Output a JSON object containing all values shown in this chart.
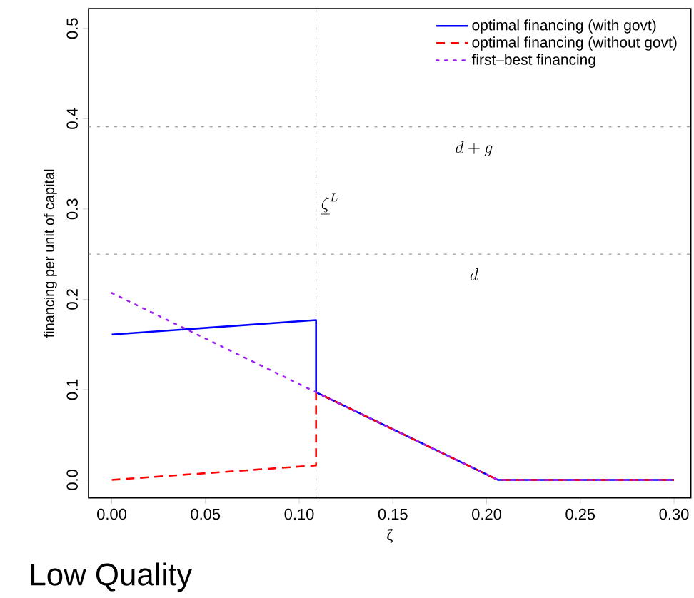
{
  "chart_data": {
    "type": "line",
    "xlabel": "ζ",
    "ylabel": "financing per unit of capital",
    "xlim": [
      -0.0124,
      0.309
    ],
    "ylim": [
      -0.02,
      0.522
    ],
    "xticks": [
      {
        "value": 0,
        "label": "0.00"
      },
      {
        "value": 0.05,
        "label": "0.05"
      },
      {
        "value": 0.1,
        "label": "0.10"
      },
      {
        "value": 0.15,
        "label": "0.15"
      },
      {
        "value": 0.2,
        "label": "0.20"
      },
      {
        "value": 0.25,
        "label": "0.25"
      },
      {
        "value": 0.3,
        "label": "0.30"
      }
    ],
    "yticks": [
      {
        "value": 0,
        "label": "0.0"
      },
      {
        "value": 0.1,
        "label": "0.1"
      },
      {
        "value": 0.2,
        "label": "0.2"
      },
      {
        "value": 0.3,
        "label": "0.3"
      },
      {
        "value": 0.4,
        "label": "0.4"
      },
      {
        "value": 0.5,
        "label": "0.5"
      }
    ],
    "series": [
      {
        "name": "optimal financing (with govt)",
        "color": "#0000ff",
        "line_style": "solid",
        "x": [
          0,
          0.109,
          0.109,
          0.206,
          0.3
        ],
        "values": [
          0.161,
          0.177,
          0.097,
          0,
          0
        ]
      },
      {
        "name": "optimal financing (without govt)",
        "color": "#ff0000",
        "line_style": "dashed",
        "x": [
          0,
          0.109,
          0.109,
          0.206,
          0.3
        ],
        "values": [
          0,
          0.016,
          0.097,
          0,
          0
        ]
      },
      {
        "name": "first–best financing",
        "color": "#a020f0",
        "line_style": "dotted",
        "x": [
          0,
          0.109,
          0.206,
          0.3
        ],
        "values": [
          0.207,
          0.097,
          0,
          0
        ]
      }
    ],
    "ref_lines": [
      {
        "axis": "y",
        "value": 0.391,
        "label": "d+g",
        "color": "#808080",
        "line_style": "dotted"
      },
      {
        "axis": "y",
        "value": 0.25,
        "label": "d",
        "color": "#808080",
        "line_style": "dotted"
      },
      {
        "axis": "x",
        "value": 0.109,
        "label": "\\underline{\\zeta}^{L}",
        "color": "#808080",
        "line_style": "dotted"
      }
    ],
    "legend": "top right",
    "grid": false,
    "annotations": [
      "Low Quality"
    ]
  }
}
